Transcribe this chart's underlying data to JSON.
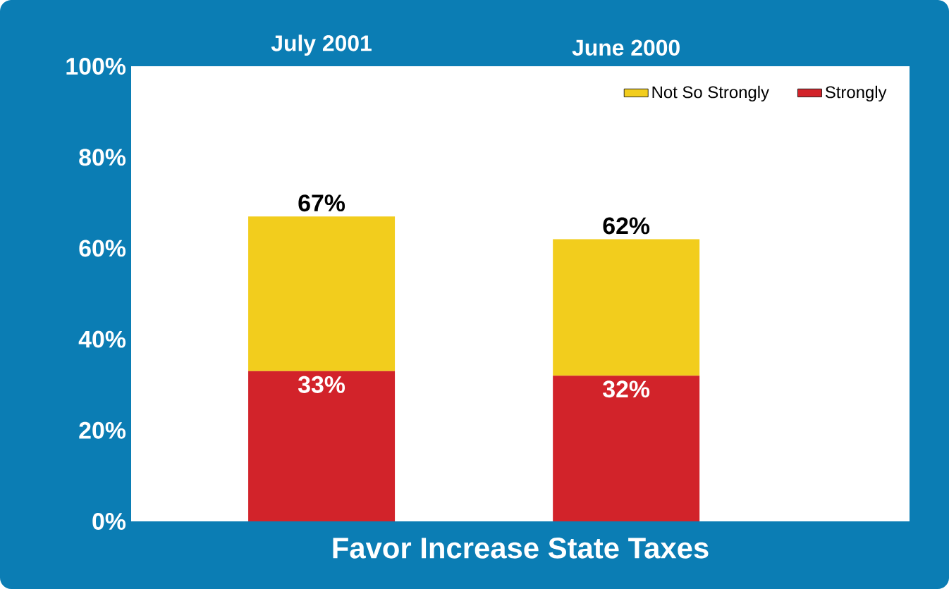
{
  "chart_data": {
    "type": "bar",
    "stacked": true,
    "xlabel": "Favor Increase State Taxes",
    "categories": [
      "July 2001",
      "June 2000"
    ],
    "series": [
      {
        "name": "Strongly",
        "color": "#d2232a",
        "values": [
          33,
          32
        ],
        "value_labels": [
          "33%",
          "32%"
        ]
      },
      {
        "name": "Not So Strongly",
        "color": "#f2cd1d",
        "values": [
          34,
          30
        ]
      }
    ],
    "totals": [
      "67%",
      "62%"
    ],
    "ylim": [
      0,
      100
    ],
    "yticks": [
      {
        "value": 0,
        "label": "0%"
      },
      {
        "value": 20,
        "label": "20%"
      },
      {
        "value": 40,
        "label": "40%"
      },
      {
        "value": 60,
        "label": "60%"
      },
      {
        "value": 80,
        "label": "80%"
      },
      {
        "value": 100,
        "label": "100%"
      }
    ],
    "legend": "top right",
    "grid": false
  }
}
